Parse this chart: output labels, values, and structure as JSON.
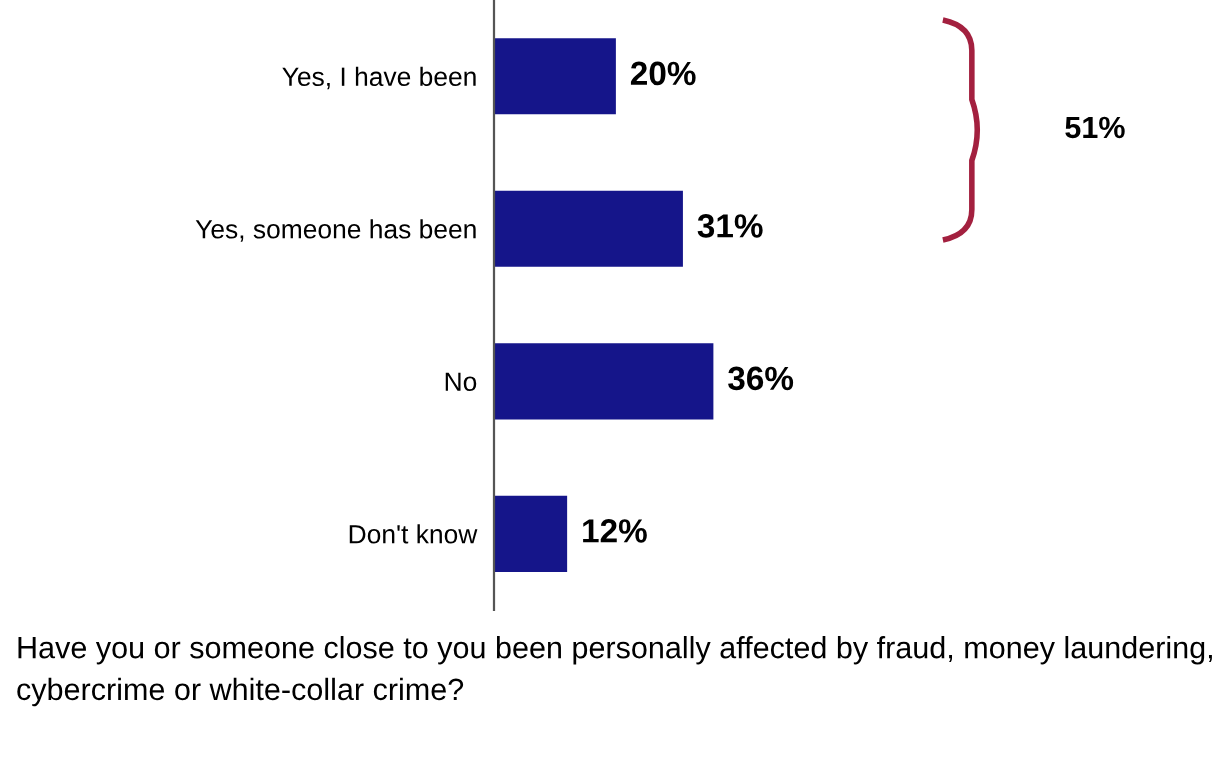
{
  "chart_data": {
    "type": "bar",
    "orientation": "horizontal",
    "categories": [
      "Yes, I have been",
      "Yes, someone has been",
      "No",
      "Don't know"
    ],
    "values": [
      20,
      31,
      36,
      12
    ],
    "color": "#15158a",
    "data_labels": true,
    "value_labels": [
      "20%",
      "31%",
      "36%",
      "12%"
    ],
    "annotations": [
      "51%",
      "Have you or someone close to you been personally affected by fraud, money laundering, cybercrime or white-collar crime?"
    ],
    "grid": false,
    "legend": false
  }
}
